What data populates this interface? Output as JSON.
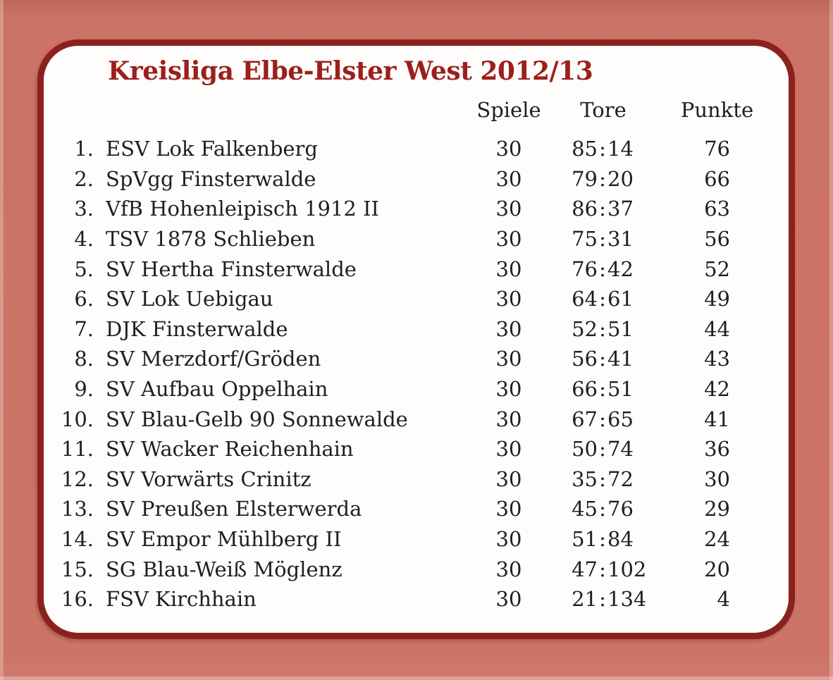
{
  "title": "Kreisliga Elbe-Elster West 2012/13",
  "columns": {
    "spiele": "Spiele",
    "tore": "Tore",
    "punkte": "Punkte",
    "tore_separator": ":"
  },
  "colors": {
    "background": "#cb7366",
    "card_background": "#fefdfb",
    "card_border": "#8b211d",
    "title_text": "#9b1f1c",
    "table_text": "#1f1f1f"
  },
  "standings": [
    {
      "rank": "1.",
      "team": "ESV Lok Falkenberg",
      "spiele": "30",
      "goals_for": "85",
      "goals_against": "14",
      "punkte": "76"
    },
    {
      "rank": "2.",
      "team": "SpVgg Finsterwalde",
      "spiele": "30",
      "goals_for": "79",
      "goals_against": "20",
      "punkte": "66"
    },
    {
      "rank": "3.",
      "team": "VfB Hohenleipisch 1912 II",
      "spiele": "30",
      "goals_for": "86",
      "goals_against": "37",
      "punkte": "63"
    },
    {
      "rank": "4.",
      "team": "TSV 1878 Schlieben",
      "spiele": "30",
      "goals_for": "75",
      "goals_against": "31",
      "punkte": "56"
    },
    {
      "rank": "5.",
      "team": "SV Hertha Finsterwalde",
      "spiele": "30",
      "goals_for": "76",
      "goals_against": "42",
      "punkte": "52"
    },
    {
      "rank": "6.",
      "team": "SV Lok Uebigau",
      "spiele": "30",
      "goals_for": "64",
      "goals_against": "61",
      "punkte": "49"
    },
    {
      "rank": "7.",
      "team": "DJK Finsterwalde",
      "spiele": "30",
      "goals_for": "52",
      "goals_against": "51",
      "punkte": "44"
    },
    {
      "rank": "8.",
      "team": "SV Merzdorf/Gröden",
      "spiele": "30",
      "goals_for": "56",
      "goals_against": "41",
      "punkte": "43"
    },
    {
      "rank": "9.",
      "team": "SV Aufbau Oppelhain",
      "spiele": "30",
      "goals_for": "66",
      "goals_against": "51",
      "punkte": "42"
    },
    {
      "rank": "10.",
      "team": "SV Blau-Gelb 90 Sonnewalde",
      "spiele": "30",
      "goals_for": "67",
      "goals_against": "65",
      "punkte": "41"
    },
    {
      "rank": "11.",
      "team": "SV Wacker Reichenhain",
      "spiele": "30",
      "goals_for": "50",
      "goals_against": "74",
      "punkte": "36"
    },
    {
      "rank": "12.",
      "team": "SV Vorwärts Crinitz",
      "spiele": "30",
      "goals_for": "35",
      "goals_against": "72",
      "punkte": "30"
    },
    {
      "rank": "13.",
      "team": "SV Preußen Elsterwerda",
      "spiele": "30",
      "goals_for": "45",
      "goals_against": "76",
      "punkte": "29"
    },
    {
      "rank": "14.",
      "team": "SV Empor Mühlberg II",
      "spiele": "30",
      "goals_for": "51",
      "goals_against": "84",
      "punkte": "24"
    },
    {
      "rank": "15.",
      "team": "SG Blau-Weiß Möglenz",
      "spiele": "30",
      "goals_for": "47",
      "goals_against": "102",
      "punkte": "20"
    },
    {
      "rank": "16.",
      "team": "FSV Kirchhain",
      "spiele": "30",
      "goals_for": "21",
      "goals_against": "134",
      "punkte": "4"
    }
  ]
}
